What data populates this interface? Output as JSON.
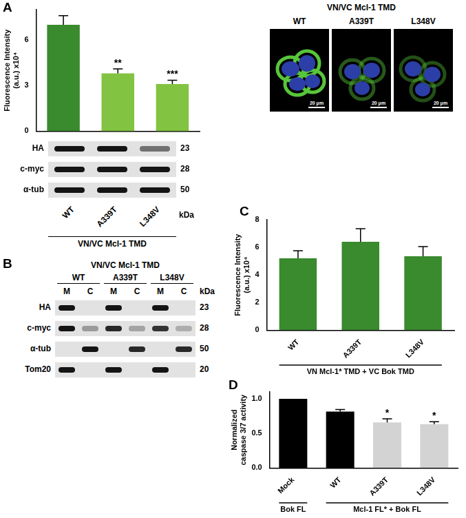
{
  "panel_labels": [
    "A",
    "B",
    "C",
    "D"
  ],
  "chart_data": [
    {
      "type": "bar",
      "y_label": [
        "Fluorescence Intensity",
        "(a.u.) x10⁴"
      ],
      "categories": [
        "WT",
        "A339T",
        "L348V"
      ],
      "values": [
        7.0,
        3.8,
        3.1
      ],
      "errors": [
        0.6,
        0.3,
        0.25
      ],
      "colors": [
        "#3a8a2e",
        "#82c341",
        "#82c341"
      ],
      "annotations": [
        null,
        "**",
        "***"
      ],
      "ylim": [
        0,
        8
      ],
      "yticks": [
        0,
        3,
        6
      ],
      "grid": false,
      "tick_labels": "y"
    },
    {
      "type": "bar",
      "y_label": [
        "Fluorescence Intensity",
        "(a.u.) x10⁴"
      ],
      "categories": [
        "WT",
        "A339T",
        "L348V"
      ],
      "values": [
        5.2,
        6.4,
        5.35
      ],
      "errors": [
        0.55,
        0.95,
        0.7
      ],
      "color": "#3a8a2e",
      "ylim": [
        0,
        8
      ],
      "yticks": [
        0,
        2,
        4,
        6,
        8
      ],
      "grid": false,
      "x_groups": [
        {
          "label": "VN Mcl-1* TMD + VC Bok TMD",
          "categories": [
            "WT",
            "A339T",
            "L348V"
          ]
        }
      ]
    },
    {
      "type": "bar",
      "y_label": [
        "Normalized",
        "caspase 3/7 activity"
      ],
      "categories": [
        "Mock",
        "WT",
        "A339T",
        "L348V"
      ],
      "values": [
        1.0,
        0.815,
        0.66,
        0.635
      ],
      "errors": [
        null,
        0.03,
        0.05,
        0.035
      ],
      "colors": [
        "#000000",
        "#000000",
        "#d3d3d3",
        "#d3d3d3"
      ],
      "annotations": [
        null,
        null,
        "*",
        "*"
      ],
      "ylim": [
        0,
        1.1
      ],
      "yticks": [
        {
          "value": 0,
          "label": "0.0"
        },
        {
          "value": 0.5,
          "label": "0.5"
        },
        {
          "value": 1,
          "label": "1.0"
        }
      ],
      "grid": false,
      "x_groups": [
        {
          "label": "Bok FL",
          "categories": [
            "Mock"
          ]
        },
        {
          "label": "Mcl-1 FL* + Bok FL",
          "categories": [
            "WT",
            "A339T",
            "L348V"
          ]
        }
      ]
    }
  ],
  "blot_A": {
    "lanes": [
      "WT",
      "A339T",
      "L348V"
    ],
    "unit": "kDa",
    "group_label": "VN/VC Mcl-1 TMD",
    "rows": [
      {
        "protein": "HA",
        "kDa": 23,
        "bands": [
          1,
          1,
          0.55
        ]
      },
      {
        "protein": "c-myc",
        "kDa": 28,
        "bands": [
          1,
          1,
          1
        ]
      },
      {
        "protein": "α-tub",
        "kDa": 50,
        "bands": [
          1,
          1,
          1
        ]
      }
    ]
  },
  "microscopy_A": {
    "title": "VN/VC Mcl-1 TMD",
    "images": [
      "WT",
      "A339T",
      "L348V"
    ],
    "scale_bar": "20 μm"
  },
  "blot_B": {
    "title": "VN/VC Mcl-1 TMD",
    "groups": [
      "WT",
      "A339T",
      "L348V"
    ],
    "fractions": [
      "M",
      "C"
    ],
    "unit": "kDa",
    "rows": [
      {
        "protein": "HA",
        "kDa": 23,
        "bands": [
          1,
          0,
          1,
          0,
          1,
          0
        ]
      },
      {
        "protein": "c-myc",
        "kDa": 28,
        "bands": [
          1,
          0.35,
          0.9,
          0.3,
          0.85,
          0.25
        ]
      },
      {
        "protein": "α-tub",
        "kDa": 50,
        "bands": [
          0,
          1,
          0,
          0.9,
          0,
          0.9
        ]
      },
      {
        "protein": "Tom20",
        "kDa": 20,
        "bands": [
          1,
          0,
          1,
          0,
          1,
          0
        ]
      }
    ]
  }
}
